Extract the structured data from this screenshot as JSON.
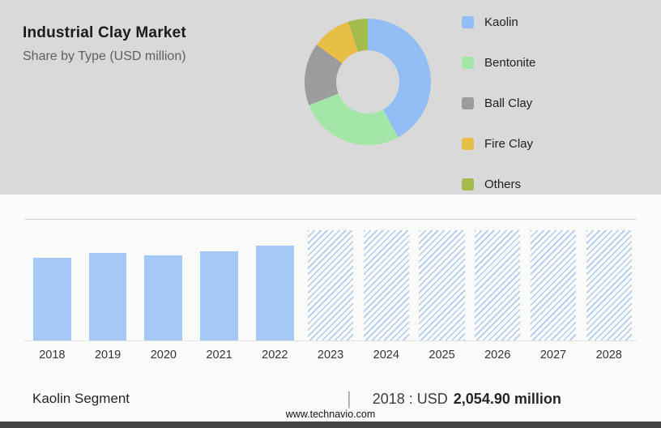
{
  "chart_data": [
    {
      "type": "pie",
      "subtype": "donut",
      "title": "Industrial Clay Market",
      "subtitle": "Share by Type (USD million)",
      "legend_position": "right",
      "values_estimated_from_arc_angles": true,
      "series": [
        {
          "name": "Kaolin",
          "value": 42,
          "color": "#92bef5"
        },
        {
          "name": "Bentonite",
          "value": 27,
          "color": "#a3e6a8"
        },
        {
          "name": "Ball Clay",
          "value": 16,
          "color": "#9c9c9c"
        },
        {
          "name": "Fire Clay",
          "value": 10,
          "color": "#e7bf47"
        },
        {
          "name": "Others",
          "value": 5,
          "color": "#a3bc4d"
        }
      ]
    },
    {
      "type": "bar",
      "categories": [
        "2018",
        "2019",
        "2020",
        "2021",
        "2022",
        "2023",
        "2024",
        "2025",
        "2026",
        "2027",
        "2028"
      ],
      "series": [
        {
          "name": "Kaolin segment size (USD million)",
          "values": [
            2054.9,
            2180,
            2120,
            2220,
            2360,
            null,
            null,
            null,
            null,
            null,
            null
          ]
        }
      ],
      "values_estimated": true,
      "labeled_value": {
        "year": "2018",
        "text": "USD 2,054.90 million"
      },
      "bar_color": "#a6c8f7",
      "forecast_years": [
        "2023",
        "2024",
        "2025",
        "2026",
        "2027",
        "2028"
      ],
      "forecast_style": "hatched",
      "forecast_bar_ratio": 0.91,
      "ylim": [
        0,
        3000
      ],
      "grid": "single top gridline",
      "legend": "none"
    }
  ],
  "footer": {
    "segment_label": "Kaolin Segment",
    "separator": "|",
    "stat_year_prefix": "2018 : USD",
    "stat_value": "2,054.90 million",
    "website": "www.technavio.com"
  }
}
